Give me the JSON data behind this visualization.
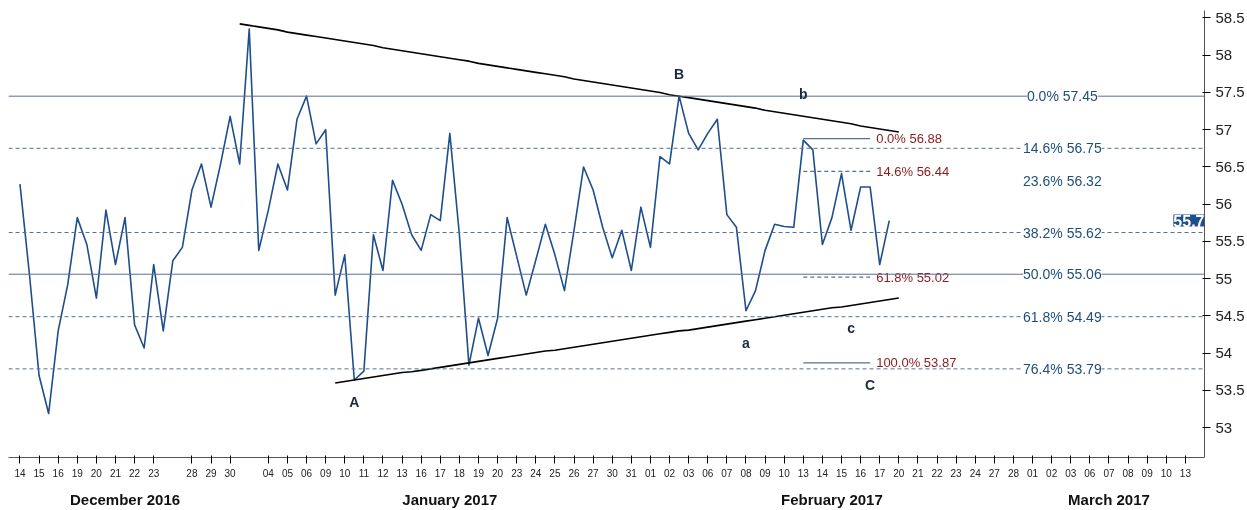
{
  "chart_data": {
    "type": "line",
    "ylim": [
      52.6,
      58.6
    ],
    "categories": [
      "14",
      null,
      "15",
      null,
      "16",
      null,
      "19",
      null,
      "20",
      null,
      "21",
      null,
      "22",
      null,
      "23",
      null,
      null,
      null,
      "28",
      null,
      "29",
      null,
      "30",
      null,
      null,
      null,
      "04",
      null,
      "05",
      null,
      "06",
      null,
      "09",
      null,
      "10",
      null,
      "11",
      null,
      "12",
      null,
      "13",
      null,
      "16",
      null,
      "17",
      null,
      "18",
      null,
      "19",
      null,
      "20",
      null,
      "23",
      null,
      "24",
      null,
      "25",
      null,
      "26",
      null,
      "27",
      null,
      "30",
      null,
      "31",
      null,
      "01",
      null,
      "02",
      null,
      "03",
      null,
      "06",
      null,
      "07",
      null,
      "08",
      null,
      "09",
      null,
      "10",
      null,
      "13",
      null,
      "14",
      null,
      "15",
      null,
      "16",
      null,
      "17",
      null,
      "20",
      null,
      "21",
      null,
      "22",
      null,
      "23",
      null,
      "24",
      null,
      "27",
      null,
      "28",
      null,
      "01",
      null,
      "02",
      null,
      "03",
      null,
      "06",
      null,
      "07",
      null,
      "08",
      null,
      "09",
      null,
      "10",
      null,
      "13",
      null
    ],
    "yticks": [
      53,
      53.5,
      54,
      54.5,
      55,
      55.5,
      56,
      56.5,
      57,
      57.5,
      58,
      58.5
    ],
    "grid": false,
    "line_style": "solid",
    "series": [
      {
        "color": "#1f4e8c",
        "values": [
          56.27,
          55.05,
          53.7,
          53.19,
          54.3,
          54.92,
          55.82,
          55.46,
          54.74,
          55.92,
          55.19,
          55.82,
          54.38,
          54.07,
          55.19,
          54.3,
          55.24,
          55.42,
          56.19,
          56.54,
          55.96,
          56.54,
          57.18,
          56.54,
          58.35,
          55.38,
          55.92,
          56.54,
          56.19,
          57.14,
          57.45,
          56.81,
          57.0,
          54.78,
          55.32,
          53.64,
          53.76,
          55.59,
          55.11,
          56.32,
          56.0,
          55.59,
          55.38,
          55.86,
          55.78,
          56.95,
          55.59,
          53.84,
          54.47,
          53.97,
          54.47,
          55.82,
          55.3,
          54.78,
          55.25,
          55.73,
          55.32,
          54.84,
          55.65,
          56.5,
          56.19,
          55.69,
          55.28,
          55.65,
          55.11,
          55.96,
          55.42,
          56.64,
          56.54,
          57.45,
          56.95,
          56.73,
          56.95,
          57.14,
          55.86,
          55.69,
          54.57,
          54.84,
          55.38,
          55.73,
          55.7,
          55.69,
          56.86,
          56.73,
          55.46,
          55.82,
          56.41,
          55.65,
          56.23,
          56.23,
          55.19,
          55.78,
          null,
          null,
          null,
          null,
          null,
          null,
          null,
          null,
          null,
          null,
          null,
          null,
          null,
          null,
          null,
          null,
          null,
          null,
          null,
          null,
          null,
          null,
          null,
          null,
          null,
          null,
          null,
          null,
          null,
          null,
          null,
          null
        ]
      },
      {
        "color": "#000000",
        "values": [
          null,
          null,
          null,
          null,
          null,
          null,
          null,
          null,
          null,
          null,
          null,
          null,
          null,
          null,
          null,
          null,
          null,
          null,
          null,
          null,
          null,
          null,
          null,
          58.42,
          58.4,
          58.38,
          58.36,
          58.34,
          58.31,
          58.29,
          58.27,
          58.25,
          58.23,
          58.21,
          58.19,
          58.17,
          58.15,
          58.13,
          58.1,
          58.08,
          58.06,
          58.04,
          58.02,
          58.0,
          57.98,
          57.96,
          57.94,
          57.92,
          57.89,
          57.87,
          57.85,
          57.83,
          57.81,
          57.79,
          57.77,
          57.75,
          57.73,
          57.71,
          57.68,
          57.66,
          57.64,
          57.62,
          57.6,
          57.58,
          57.56,
          57.54,
          57.52,
          57.5,
          57.47,
          57.45,
          57.43,
          57.41,
          57.39,
          57.37,
          57.35,
          57.33,
          57.31,
          57.29,
          57.26,
          57.24,
          57.22,
          57.2,
          57.18,
          57.16,
          57.14,
          57.12,
          57.1,
          57.08,
          57.05,
          57.03,
          57.01,
          56.99,
          56.97,
          null,
          null,
          null,
          null,
          null,
          null,
          null,
          null,
          null,
          null,
          null,
          null,
          null,
          null,
          null,
          null,
          null,
          null,
          null,
          null,
          null,
          null,
          null,
          null,
          null,
          null,
          null,
          null,
          null,
          null,
          null
        ]
      },
      {
        "color": "#000000",
        "values": [
          null,
          null,
          null,
          null,
          null,
          null,
          null,
          null,
          null,
          null,
          null,
          null,
          null,
          null,
          null,
          null,
          null,
          null,
          null,
          null,
          null,
          null,
          null,
          null,
          null,
          null,
          null,
          null,
          null,
          null,
          null,
          null,
          null,
          53.6,
          53.62,
          53.64,
          53.66,
          53.68,
          53.7,
          53.72,
          53.74,
          53.75,
          53.77,
          53.79,
          53.81,
          53.83,
          53.85,
          53.87,
          53.89,
          53.91,
          53.93,
          53.95,
          53.97,
          53.99,
          54.01,
          54.03,
          54.04,
          54.06,
          54.08,
          54.1,
          54.12,
          54.14,
          54.16,
          54.18,
          54.2,
          54.22,
          54.24,
          54.26,
          54.28,
          54.3,
          54.31,
          54.33,
          54.35,
          54.37,
          54.39,
          54.41,
          54.43,
          54.45,
          54.47,
          54.49,
          54.51,
          54.53,
          54.55,
          54.57,
          54.59,
          54.61,
          54.62,
          54.64,
          54.66,
          54.68,
          54.7,
          54.72,
          54.74,
          null,
          null,
          null,
          null,
          null,
          null,
          null,
          null,
          null,
          null,
          null,
          null,
          null,
          null,
          null,
          null,
          null,
          null,
          null,
          null,
          null,
          null,
          null,
          null,
          null,
          null,
          null,
          null,
          null,
          null,
          null
        ]
      },
      {
        "name": "0.0%   56.88",
        "color": "#5a7090",
        "line_style": "solid",
        "values": [
          null,
          null,
          null,
          null,
          null,
          null,
          null,
          null,
          null,
          null,
          null,
          null,
          null,
          null,
          null,
          null,
          null,
          null,
          null,
          null,
          null,
          null,
          null,
          null,
          null,
          null,
          null,
          null,
          null,
          null,
          null,
          null,
          null,
          null,
          null,
          null,
          null,
          null,
          null,
          null,
          null,
          null,
          null,
          null,
          null,
          null,
          null,
          null,
          null,
          null,
          null,
          null,
          null,
          null,
          null,
          null,
          null,
          null,
          null,
          null,
          null,
          null,
          null,
          null,
          null,
          null,
          null,
          null,
          null,
          null,
          null,
          null,
          null,
          null,
          null,
          null,
          null,
          null,
          null,
          null,
          null,
          null,
          56.88,
          56.88,
          56.88,
          56.88,
          56.88,
          56.88,
          56.88,
          56.88,
          null,
          null,
          null,
          null,
          null,
          null,
          null,
          null,
          null,
          null,
          null,
          null,
          null,
          null,
          null,
          null,
          null,
          null,
          null,
          null,
          null,
          null,
          null,
          null,
          null,
          null,
          null,
          null,
          null,
          null,
          null,
          null,
          null,
          null
        ]
      },
      {
        "name": "14.6%   56.44",
        "color": "#5a7090",
        "line_style": "dashed",
        "values": [
          null,
          null,
          null,
          null,
          null,
          null,
          null,
          null,
          null,
          null,
          null,
          null,
          null,
          null,
          null,
          null,
          null,
          null,
          null,
          null,
          null,
          null,
          null,
          null,
          null,
          null,
          null,
          null,
          null,
          null,
          null,
          null,
          null,
          null,
          null,
          null,
          null,
          null,
          null,
          null,
          null,
          null,
          null,
          null,
          null,
          null,
          null,
          null,
          null,
          null,
          null,
          null,
          null,
          null,
          null,
          null,
          null,
          null,
          null,
          null,
          null,
          null,
          null,
          null,
          null,
          null,
          null,
          null,
          null,
          null,
          null,
          null,
          null,
          null,
          null,
          null,
          null,
          null,
          null,
          null,
          null,
          null,
          56.44,
          56.44,
          56.44,
          56.44,
          56.44,
          56.44,
          56.44,
          56.44,
          null,
          null,
          null,
          null,
          null,
          null,
          null,
          null,
          null,
          null,
          null,
          null,
          null,
          null,
          null,
          null,
          null,
          null,
          null,
          null,
          null,
          null,
          null,
          null,
          null,
          null,
          null,
          null,
          null,
          null,
          null,
          null,
          null,
          null
        ]
      },
      {
        "name": "61.8%   55.02",
        "color": "#5a7090",
        "line_style": "dashed",
        "values": [
          null,
          null,
          null,
          null,
          null,
          null,
          null,
          null,
          null,
          null,
          null,
          null,
          null,
          null,
          null,
          null,
          null,
          null,
          null,
          null,
          null,
          null,
          null,
          null,
          null,
          null,
          null,
          null,
          null,
          null,
          null,
          null,
          null,
          null,
          null,
          null,
          null,
          null,
          null,
          null,
          null,
          null,
          null,
          null,
          null,
          null,
          null,
          null,
          null,
          null,
          null,
          null,
          null,
          null,
          null,
          null,
          null,
          null,
          null,
          null,
          null,
          null,
          null,
          null,
          null,
          null,
          null,
          null,
          null,
          null,
          null,
          null,
          null,
          null,
          null,
          null,
          null,
          null,
          null,
          null,
          null,
          null,
          55.02,
          55.02,
          55.02,
          55.02,
          55.02,
          55.02,
          55.02,
          55.02,
          null,
          null,
          null,
          null,
          null,
          null,
          null,
          null,
          null,
          null,
          null,
          null,
          null,
          null,
          null,
          null,
          null,
          null,
          null,
          null,
          null,
          null,
          null,
          null,
          null,
          null,
          null,
          null,
          null,
          null,
          null,
          null,
          null,
          null
        ]
      },
      {
        "name": "100.0% 53.87",
        "color": "#5a7090",
        "line_style": "solid",
        "values": [
          null,
          null,
          null,
          null,
          null,
          null,
          null,
          null,
          null,
          null,
          null,
          null,
          null,
          null,
          null,
          null,
          null,
          null,
          null,
          null,
          null,
          null,
          null,
          null,
          null,
          null,
          null,
          null,
          null,
          null,
          null,
          null,
          null,
          null,
          null,
          null,
          null,
          null,
          null,
          null,
          null,
          null,
          null,
          null,
          null,
          null,
          null,
          null,
          null,
          null,
          null,
          null,
          null,
          null,
          null,
          null,
          null,
          null,
          null,
          null,
          null,
          null,
          null,
          null,
          null,
          null,
          null,
          null,
          null,
          null,
          null,
          null,
          null,
          null,
          null,
          null,
          null,
          null,
          null,
          null,
          null,
          null,
          53.87,
          53.87,
          53.87,
          53.87,
          53.87,
          53.87,
          53.87,
          53.87,
          null,
          null,
          null,
          null,
          null,
          null,
          null,
          null,
          null,
          null,
          null,
          null,
          null,
          null,
          null,
          null,
          null,
          null,
          null,
          null,
          null,
          null,
          null,
          null,
          null,
          null,
          null,
          null,
          null,
          null,
          null,
          null,
          null,
          null
        ]
      }
    ],
    "ref_lines": [
      {
        "axis": "y",
        "value": 57.45,
        "label": "0.0% 57.45",
        "color": "#5a7090",
        "line_style": "solid"
      },
      {
        "axis": "y",
        "value": 56.75,
        "label": "14.6% 56.75",
        "color": "#5a7090",
        "line_style": "dashed"
      },
      {
        "axis": "y",
        "value": 55.62,
        "label": "38.2% 55.62",
        "color": "#5a7090",
        "line_style": "dashed"
      },
      {
        "axis": "y",
        "value": 55.06,
        "label": "50.0% 55.06",
        "color": "#5a7090",
        "line_style": "solid"
      },
      {
        "axis": "y",
        "value": 54.49,
        "label": "61.8% 54.49",
        "color": "#5a7090",
        "line_style": "dashed"
      },
      {
        "axis": "y",
        "value": 53.79,
        "label": "76.4% 53.79",
        "color": "#5a7090",
        "line_style": "dashed"
      }
    ],
    "annotations": [
      {
        "text": "A",
        "y": 53.64
      },
      {
        "text": "B",
        "y": 57.45
      },
      {
        "text": "C",
        "y": 53.87
      },
      {
        "text": "a",
        "y": 54.43
      },
      {
        "text": "b",
        "y": 57.18
      },
      {
        "text": "c",
        "y": 54.64
      },
      "55.7",
      "23.6% 56.32",
      "December 2016",
      "January 2017",
      "February 2017",
      "March 2017"
    ]
  }
}
